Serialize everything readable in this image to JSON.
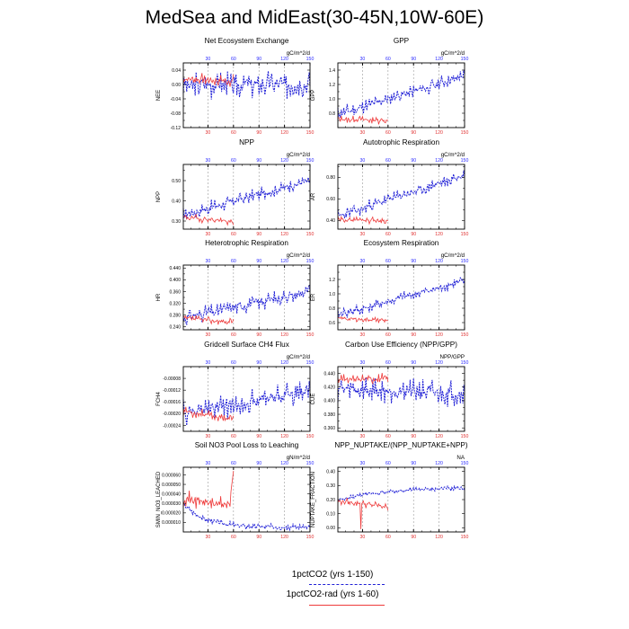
{
  "title": "MedSea and MidEast(30-45N,10W-60E)",
  "colors": {
    "control": "#1f1fd6",
    "rad": "#ee3b3b",
    "top_ticks": "#2b2bff",
    "bottom_ticks": "#e03030",
    "grid": "#999999"
  },
  "legend": {
    "items": [
      {
        "label": "1pctCO2 (yrs 1-150)",
        "color": "#1f1fd6",
        "style": "dashed"
      },
      {
        "label": "1pctCO2-rad (yrs 1-60)",
        "color": "#ee3b3b",
        "style": "solid"
      }
    ]
  },
  "chart_data": [
    {
      "type": "line",
      "title": "Net Ecosystem Exchange",
      "ylabel": "NEE",
      "units": "gC/m^2/d",
      "xlim": [
        1,
        150
      ],
      "ylim": [
        -0.12,
        0.06
      ],
      "yticks": [
        -0.12,
        -0.1,
        -0.08,
        -0.06,
        -0.04,
        -0.02,
        0.0,
        0.02,
        0.04
      ],
      "ytick_labels": [
        "-0.12",
        "",
        "-0.08",
        "",
        "-0.04",
        "",
        "0.00",
        "",
        "0.04"
      ],
      "xticks": [
        30,
        60,
        90,
        120,
        150
      ],
      "xtick_labels": [
        "30",
        "60",
        "90",
        "120",
        "150"
      ],
      "series": [
        {
          "name": "1pctCO2 (yrs 1-150)",
          "years": [
            1,
            150
          ],
          "start": 0.0,
          "end": 0.0,
          "amp": 0.045,
          "seed": 3
        },
        {
          "name": "1pctCO2-rad (yrs 1-60)",
          "years": [
            1,
            60
          ],
          "start": 0.015,
          "end": 0.01,
          "amp": 0.02,
          "seed": 7
        }
      ]
    },
    {
      "type": "line",
      "title": "GPP",
      "ylabel": "GPP",
      "units": "gC/m^2/d",
      "xlim": [
        1,
        150
      ],
      "ylim": [
        0.6,
        1.5
      ],
      "yticks": [
        0.6,
        0.7,
        0.8,
        0.9,
        1.0,
        1.1,
        1.2,
        1.3,
        1.4
      ],
      "ytick_labels": [
        "",
        "",
        "0.8",
        "",
        "1.0",
        "",
        "1.2",
        "",
        "1.4"
      ],
      "xticks": [
        30,
        60,
        90,
        120,
        150
      ],
      "xtick_labels": [
        "30",
        "60",
        "90",
        "120",
        "150"
      ],
      "series": [
        {
          "name": "1pctCO2 (yrs 1-150)",
          "years": [
            1,
            150
          ],
          "start": 0.78,
          "end": 1.32,
          "amp": 0.12,
          "seed": 11
        },
        {
          "name": "1pctCO2-rad (yrs 1-60)",
          "years": [
            1,
            60
          ],
          "start": 0.72,
          "end": 0.7,
          "amp": 0.06,
          "seed": 13
        }
      ]
    },
    {
      "type": "line",
      "title": "NPP",
      "ylabel": "NPP",
      "units": "gC/m^2/d",
      "xlim": [
        1,
        150
      ],
      "ylim": [
        0.26,
        0.58
      ],
      "yticks": [
        0.3,
        0.35,
        0.4,
        0.45,
        0.5,
        0.55
      ],
      "ytick_labels": [
        "0.30",
        "",
        "0.40",
        "",
        "0.50",
        ""
      ],
      "xticks": [
        30,
        60,
        90,
        120,
        150
      ],
      "xtick_labels": [
        "30",
        "60",
        "90",
        "120",
        "150"
      ],
      "series": [
        {
          "name": "1pctCO2 (yrs 1-150)",
          "years": [
            1,
            150
          ],
          "start": 0.33,
          "end": 0.5,
          "amp": 0.04,
          "seed": 17
        },
        {
          "name": "1pctCO2-rad (yrs 1-60)",
          "years": [
            1,
            60
          ],
          "start": 0.32,
          "end": 0.295,
          "amp": 0.02,
          "seed": 19
        }
      ]
    },
    {
      "type": "line",
      "title": "Autotrophic Respiration",
      "ylabel": "AR",
      "units": "gC/m^2/d",
      "xlim": [
        1,
        150
      ],
      "ylim": [
        0.32,
        0.92
      ],
      "yticks": [
        0.4,
        0.5,
        0.6,
        0.7,
        0.8,
        0.9
      ],
      "ytick_labels": [
        "0.40",
        "",
        "0.60",
        "",
        "0.80",
        ""
      ],
      "xticks": [
        30,
        60,
        90,
        120,
        150
      ],
      "xtick_labels": [
        "30",
        "60",
        "90",
        "120",
        "150"
      ],
      "series": [
        {
          "name": "1pctCO2 (yrs 1-150)",
          "years": [
            1,
            150
          ],
          "start": 0.44,
          "end": 0.82,
          "amp": 0.07,
          "seed": 23
        },
        {
          "name": "1pctCO2-rad (yrs 1-60)",
          "years": [
            1,
            60
          ],
          "start": 0.41,
          "end": 0.4,
          "amp": 0.035,
          "seed": 29
        }
      ]
    },
    {
      "type": "line",
      "title": "Heterotrophic Respiration",
      "ylabel": "HR",
      "units": "gC/m^2/d",
      "xlim": [
        1,
        150
      ],
      "ylim": [
        0.23,
        0.45
      ],
      "yticks": [
        0.24,
        0.26,
        0.28,
        0.3,
        0.32,
        0.34,
        0.36,
        0.38,
        0.4,
        0.42,
        0.44
      ],
      "ytick_labels": [
        "0.240",
        "",
        "0.280",
        "",
        "0.320",
        "",
        "0.360",
        "",
        "0.400",
        "",
        "0.440"
      ],
      "xticks": [
        30,
        60,
        90,
        120,
        150
      ],
      "xtick_labels": [
        "30",
        "60",
        "90",
        "120",
        "150"
      ],
      "series": [
        {
          "name": "1pctCO2 (yrs 1-150)",
          "years": [
            1,
            150
          ],
          "start": 0.27,
          "end": 0.36,
          "amp": 0.03,
          "seed": 31
        },
        {
          "name": "1pctCO2-rad (yrs 1-60)",
          "years": [
            1,
            60
          ],
          "start": 0.27,
          "end": 0.255,
          "amp": 0.014,
          "seed": 37
        }
      ]
    },
    {
      "type": "line",
      "title": "Ecosystem Respiration",
      "ylabel": "ER",
      "units": "gC/m^2/d",
      "xlim": [
        1,
        150
      ],
      "ylim": [
        0.5,
        1.4
      ],
      "yticks": [
        0.6,
        0.7,
        0.8,
        0.9,
        1.0,
        1.1,
        1.2,
        1.3
      ],
      "ytick_labels": [
        "0.6",
        "",
        "0.8",
        "",
        "1.0",
        "",
        "1.2",
        ""
      ],
      "xticks": [
        30,
        60,
        90,
        120,
        150
      ],
      "xtick_labels": [
        "30",
        "60",
        "90",
        "120",
        "150"
      ],
      "series": [
        {
          "name": "1pctCO2 (yrs 1-150)",
          "years": [
            1,
            150
          ],
          "start": 0.7,
          "end": 1.18,
          "amp": 0.1,
          "seed": 41
        },
        {
          "name": "1pctCO2-rad (yrs 1-60)",
          "years": [
            1,
            60
          ],
          "start": 0.66,
          "end": 0.63,
          "amp": 0.045,
          "seed": 43
        }
      ]
    },
    {
      "type": "line",
      "title": "Gridcell Surface CH4 Flux",
      "ylabel": "FCH4",
      "units": "gC/m^2/d",
      "xlim": [
        1,
        150
      ],
      "ylim": [
        -0.00026,
        -4e-05
      ],
      "yticks": [
        -0.00024,
        -0.0002,
        -0.00016,
        -0.00012,
        -8e-05
      ],
      "ytick_labels": [
        "-0.00024",
        "-0.00020",
        "-0.00016",
        "-0.00012",
        "-0.00008"
      ],
      "xticks": [
        30,
        60,
        90,
        120,
        150
      ],
      "xtick_labels": [
        "30",
        "60",
        "90",
        "120",
        "150"
      ],
      "series": [
        {
          "name": "1pctCO2 (yrs 1-150)",
          "years": [
            1,
            150
          ],
          "start": -0.0002,
          "end": -0.00012,
          "amp": 5e-05,
          "seed": 47
        },
        {
          "name": "1pctCO2-rad (yrs 1-60)",
          "years": [
            1,
            60
          ],
          "start": -0.00019,
          "end": -0.00022,
          "amp": 2e-05,
          "seed": 53
        }
      ]
    },
    {
      "type": "line",
      "title": "Carbon Use Efficiency (NPP/GPP)",
      "ylabel": "CUE",
      "units": "NPP/GPP",
      "xlim": [
        1,
        150
      ],
      "ylim": [
        0.355,
        0.45
      ],
      "yticks": [
        0.36,
        0.37,
        0.38,
        0.39,
        0.4,
        0.41,
        0.42,
        0.43,
        0.44
      ],
      "ytick_labels": [
        "0.360",
        "",
        "0.380",
        "",
        "0.400",
        "",
        "0.420",
        "",
        "0.440"
      ],
      "xticks": [
        30,
        60,
        90,
        120,
        150
      ],
      "xtick_labels": [
        "30",
        "60",
        "90",
        "120",
        "150"
      ],
      "series": [
        {
          "name": "1pctCO2 (yrs 1-150)",
          "years": [
            1,
            150
          ],
          "start": 0.418,
          "end": 0.41,
          "amp": 0.022,
          "seed": 59
        },
        {
          "name": "1pctCO2-rad (yrs 1-60)",
          "years": [
            1,
            60
          ],
          "start": 0.43,
          "end": 0.432,
          "amp": 0.01,
          "seed": 61
        }
      ]
    },
    {
      "type": "line",
      "title": "Soil NO3 Pool Loss to Leaching",
      "ylabel": "SMIN_NO3_LEACHED",
      "units": "gN/m^2/d",
      "xlim": [
        1,
        150
      ],
      "ylim": [
        0.0,
        6.8e-05
      ],
      "yticks": [
        1e-05,
        2e-05,
        3e-05,
        4e-05,
        5e-05,
        6e-05
      ],
      "ytick_labels": [
        "0.000010",
        "0.000020",
        "0.000030",
        "0.000040",
        "0.000050",
        "0.000060"
      ],
      "xticks": [
        30,
        60,
        90,
        120,
        150
      ],
      "xtick_labels": [
        "30",
        "60",
        "90",
        "120",
        "150"
      ],
      "series": [
        {
          "name": "1pctCO2 (yrs 1-150)",
          "years": [
            1,
            150
          ],
          "start": 3e-05,
          "end": 5e-06,
          "amp": 4e-06,
          "seed": 67,
          "shape": "decay"
        },
        {
          "name": "1pctCO2-rad (yrs 1-60)",
          "years": [
            1,
            60
          ],
          "start": 3.5e-05,
          "end": 2.8e-05,
          "amp": 1e-05,
          "seed": 71,
          "spike_end": 6.4e-05
        }
      ]
    },
    {
      "type": "line",
      "title": "NPP_NUPTAKE/(NPP_NUPTAKE+NPP)",
      "ylabel": "NUPTAKE_FRACTION",
      "units": "NA",
      "xlim": [
        1,
        150
      ],
      "ylim": [
        -0.03,
        0.43
      ],
      "yticks": [
        0.0,
        0.1,
        0.2,
        0.3,
        0.4
      ],
      "ytick_labels": [
        "0.00",
        "0.10",
        "0.20",
        "0.30",
        "0.40"
      ],
      "xticks": [
        30,
        60,
        90,
        120,
        150
      ],
      "xtick_labels": [
        "30",
        "60",
        "90",
        "120",
        "150"
      ],
      "series": [
        {
          "name": "1pctCO2 (yrs 1-150)",
          "years": [
            1,
            150
          ],
          "start": 0.19,
          "end": 0.28,
          "amp": 0.02,
          "seed": 73,
          "shape": "saturate"
        },
        {
          "name": "1pctCO2-rad (yrs 1-60)",
          "years": [
            1,
            60
          ],
          "start": 0.19,
          "end": 0.15,
          "amp": 0.03,
          "seed": 79,
          "dip": -0.01
        }
      ]
    }
  ]
}
